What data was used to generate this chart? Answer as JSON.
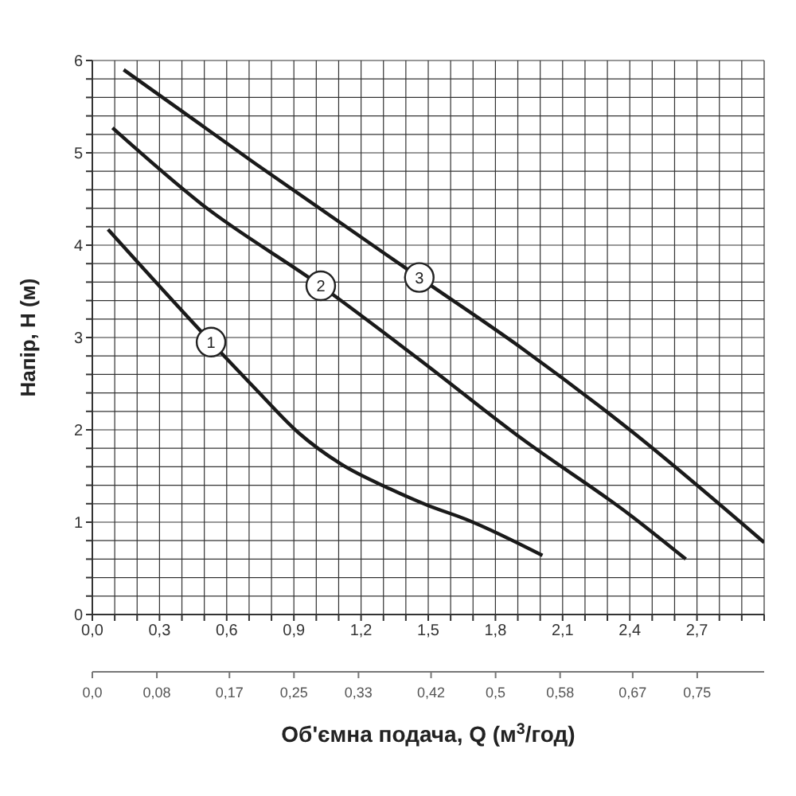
{
  "chart_data": {
    "type": "line",
    "xlabel": "Об'ємна подача, Q (м$^{3}$/год)",
    "ylabel": "Напір, H (м)",
    "xlim": [
      0,
      3.0
    ],
    "ylim": [
      0,
      6
    ],
    "xticks": [
      {
        "value": 0,
        "label": "0,0"
      },
      {
        "value": 0.1,
        "label": null
      },
      {
        "value": 0.2,
        "label": null
      },
      {
        "value": 0.3,
        "label": "0,3"
      },
      {
        "value": 0.4,
        "label": null
      },
      {
        "value": 0.5,
        "label": null
      },
      {
        "value": 0.6,
        "label": "0,6"
      },
      {
        "value": 0.7,
        "label": null
      },
      {
        "value": 0.8,
        "label": null
      },
      {
        "value": 0.9,
        "label": "0,9"
      },
      {
        "value": 1.0,
        "label": null
      },
      {
        "value": 1.1,
        "label": null
      },
      {
        "value": 1.2,
        "label": "1,2"
      },
      {
        "value": 1.3,
        "label": null
      },
      {
        "value": 1.4,
        "label": null
      },
      {
        "value": 1.5,
        "label": "1,5"
      },
      {
        "value": 1.6,
        "label": null
      },
      {
        "value": 1.7,
        "label": null
      },
      {
        "value": 1.8,
        "label": "1,8"
      },
      {
        "value": 1.9,
        "label": null
      },
      {
        "value": 2.0,
        "label": null
      },
      {
        "value": 2.1,
        "label": "2,1"
      },
      {
        "value": 2.2,
        "label": null
      },
      {
        "value": 2.3,
        "label": null
      },
      {
        "value": 2.4,
        "label": "2,4"
      },
      {
        "value": 2.5,
        "label": null
      },
      {
        "value": 2.6,
        "label": null
      },
      {
        "value": 2.7,
        "label": "2,7"
      },
      {
        "value": 2.8,
        "label": null
      },
      {
        "value": 2.9,
        "label": null
      },
      {
        "value": 3.0,
        "label": null
      }
    ],
    "yticks": [
      0,
      {
        "value": 0.2,
        "label": null
      },
      {
        "value": 0.4,
        "label": null
      },
      {
        "value": 0.6,
        "label": null
      },
      {
        "value": 0.8,
        "label": null
      },
      1,
      {
        "value": 1.2,
        "label": null
      },
      {
        "value": 1.4,
        "label": null
      },
      {
        "value": 1.6,
        "label": null
      },
      {
        "value": 1.8,
        "label": null
      },
      2,
      {
        "value": 2.2,
        "label": null
      },
      {
        "value": 2.4,
        "label": null
      },
      {
        "value": 2.6,
        "label": null
      },
      {
        "value": 2.8,
        "label": null
      },
      3,
      {
        "value": 3.2,
        "label": null
      },
      {
        "value": 3.4,
        "label": null
      },
      {
        "value": 3.6,
        "label": null
      },
      {
        "value": 3.8,
        "label": null
      },
      4,
      {
        "value": 4.2,
        "label": null
      },
      {
        "value": 4.4,
        "label": null
      },
      {
        "value": 4.6,
        "label": null
      },
      {
        "value": 4.8,
        "label": null
      },
      5,
      {
        "value": 5.2,
        "label": null
      },
      {
        "value": 5.4,
        "label": null
      },
      {
        "value": 5.6,
        "label": null
      },
      {
        "value": 5.8,
        "label": null
      },
      6
    ],
    "x2lim": [
      0,
      0.833
    ],
    "x2ticks": [
      {
        "value": 0,
        "label": "0,0"
      },
      {
        "value": 0.08,
        "label": "0,08"
      },
      {
        "value": 0.17,
        "label": "0,17"
      },
      {
        "value": 0.25,
        "label": "0,25"
      },
      {
        "value": 0.33,
        "label": "0,33"
      },
      {
        "value": 0.42,
        "label": "0,42"
      },
      {
        "value": 0.5,
        "label": "0,5"
      },
      {
        "value": 0.58,
        "label": "0,58"
      },
      {
        "value": 0.67,
        "label": "0,67"
      },
      {
        "value": 0.75,
        "label": "0,75"
      }
    ],
    "grid": true,
    "marker": "none",
    "line_style": "solid",
    "series": [
      {
        "color": "#1a1a1a",
        "x": [
          0.07,
          0.53,
          0.73,
          0.92,
          1.11,
          1.33,
          1.49,
          1.68,
          2.01
        ],
        "values": [
          4.17,
          2.95,
          2.44,
          1.97,
          1.63,
          1.36,
          1.19,
          1.02,
          0.64
        ]
      },
      {
        "color": "#1a1a1a",
        "x": [
          0.09,
          0.49,
          1.02,
          1.45,
          1.92,
          2.4,
          2.65
        ],
        "values": [
          5.27,
          4.44,
          3.56,
          2.78,
          1.9,
          1.08,
          0.6
        ]
      },
      {
        "color": "#1a1a1a",
        "x": [
          0.14,
          0.73,
          1.46,
          1.92,
          2.4,
          3.0
        ],
        "values": [
          5.9,
          4.88,
          3.65,
          2.88,
          2.0,
          0.78
        ]
      }
    ],
    "annotations": [
      {
        "text": "1",
        "x": 0.53,
        "y": 2.95
      },
      {
        "text": "2",
        "x": 1.02,
        "y": 3.56
      },
      {
        "text": "3",
        "x": 1.46,
        "y": 3.65
      }
    ]
  }
}
